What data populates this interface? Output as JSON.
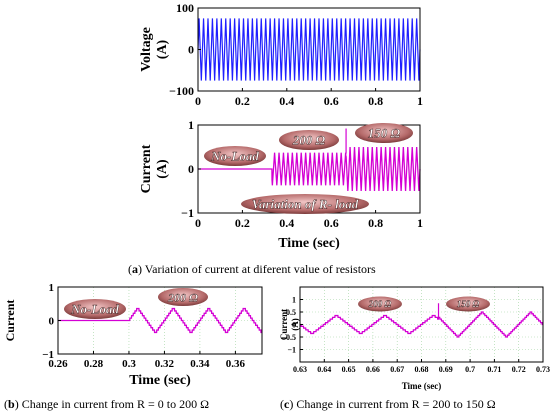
{
  "chart_data": [
    {
      "type": "line",
      "panel": "a-top",
      "ylabel": "Voltage (A)",
      "xlim": [
        0,
        1
      ],
      "ylim": [
        -100,
        100
      ],
      "xticks": [
        "0",
        "0.2",
        "0.4",
        "0.6",
        "0.8",
        "1"
      ],
      "yticks": [
        "100",
        "0",
        "−100"
      ],
      "series": [
        {
          "color": "#1f1fff",
          "amplitude": 75,
          "frequency_hz": 50
        }
      ]
    },
    {
      "type": "line",
      "panel": "a-bottom",
      "xlabel": "Time (sec)",
      "ylabel": "Current (A)",
      "xlim": [
        0,
        1
      ],
      "ylim": [
        -1,
        1
      ],
      "xticks": [
        "0",
        "0.2",
        "0.4",
        "0.6",
        "0.8",
        "1"
      ],
      "yticks": [
        "1",
        "0",
        "−1"
      ],
      "series": [
        {
          "color": "#d400d4",
          "segments": [
            {
              "from": 0.0,
              "to": 0.333,
              "amplitude": 0.0
            },
            {
              "from": 0.333,
              "to": 0.667,
              "amplitude": 0.37
            },
            {
              "from": 0.667,
              "to": 1.0,
              "amplitude": 0.5
            }
          ]
        }
      ],
      "annotations": [
        "No-Load",
        "200 Ω",
        "150 Ω",
        "Variation of R- load"
      ]
    },
    {
      "type": "line",
      "panel": "b",
      "xlabel": "Time (sec)",
      "ylabel": "Current",
      "xlim": [
        0.26,
        0.375
      ],
      "ylim": [
        -1,
        1
      ],
      "xticks": [
        "0.26",
        "0.28",
        "0.3",
        "0.32",
        "0.34",
        "0.36"
      ],
      "yticks": [
        "1",
        "0",
        "−1"
      ],
      "series": [
        {
          "color": "#d400d4",
          "segments": [
            {
              "from": 0.26,
              "to": 0.3,
              "amplitude": 0.0
            },
            {
              "from": 0.3,
              "to": 0.375,
              "amplitude": 0.37
            }
          ]
        }
      ],
      "annotations": [
        "No-Load",
        "200 Ω"
      ]
    },
    {
      "type": "line",
      "panel": "c",
      "ylabel": "Current (A)",
      "xlabel": "Time (sec)",
      "xlim": [
        0.63,
        0.73
      ],
      "ylim": [
        -1.5,
        1.5
      ],
      "xticks": [
        "0.63",
        "0.64",
        "0.65",
        "0.66",
        "0.67",
        "0.68",
        "0.69",
        "0.7",
        "0.71",
        "0.72",
        "0.73"
      ],
      "yticks": [
        "1",
        "0.5",
        "0",
        "−0.5",
        "−1"
      ],
      "series": [
        {
          "color": "#d400d4",
          "segments": [
            {
              "from": 0.63,
              "to": 0.687,
              "amplitude": 0.37
            },
            {
              "from": 0.687,
              "to": 0.73,
              "amplitude": 0.5
            }
          ]
        }
      ],
      "annotations": [
        "200 Ω",
        "150 Ω"
      ]
    }
  ],
  "captions": {
    "a_letter": "a",
    "a_text": "Variation of current at diferent value of resistors",
    "b_letter": "b",
    "b_text": "Change in current from R = 0 to 200 Ω",
    "c_letter": "c",
    "c_text": "Change in current from R = 200 to 150 Ω"
  }
}
